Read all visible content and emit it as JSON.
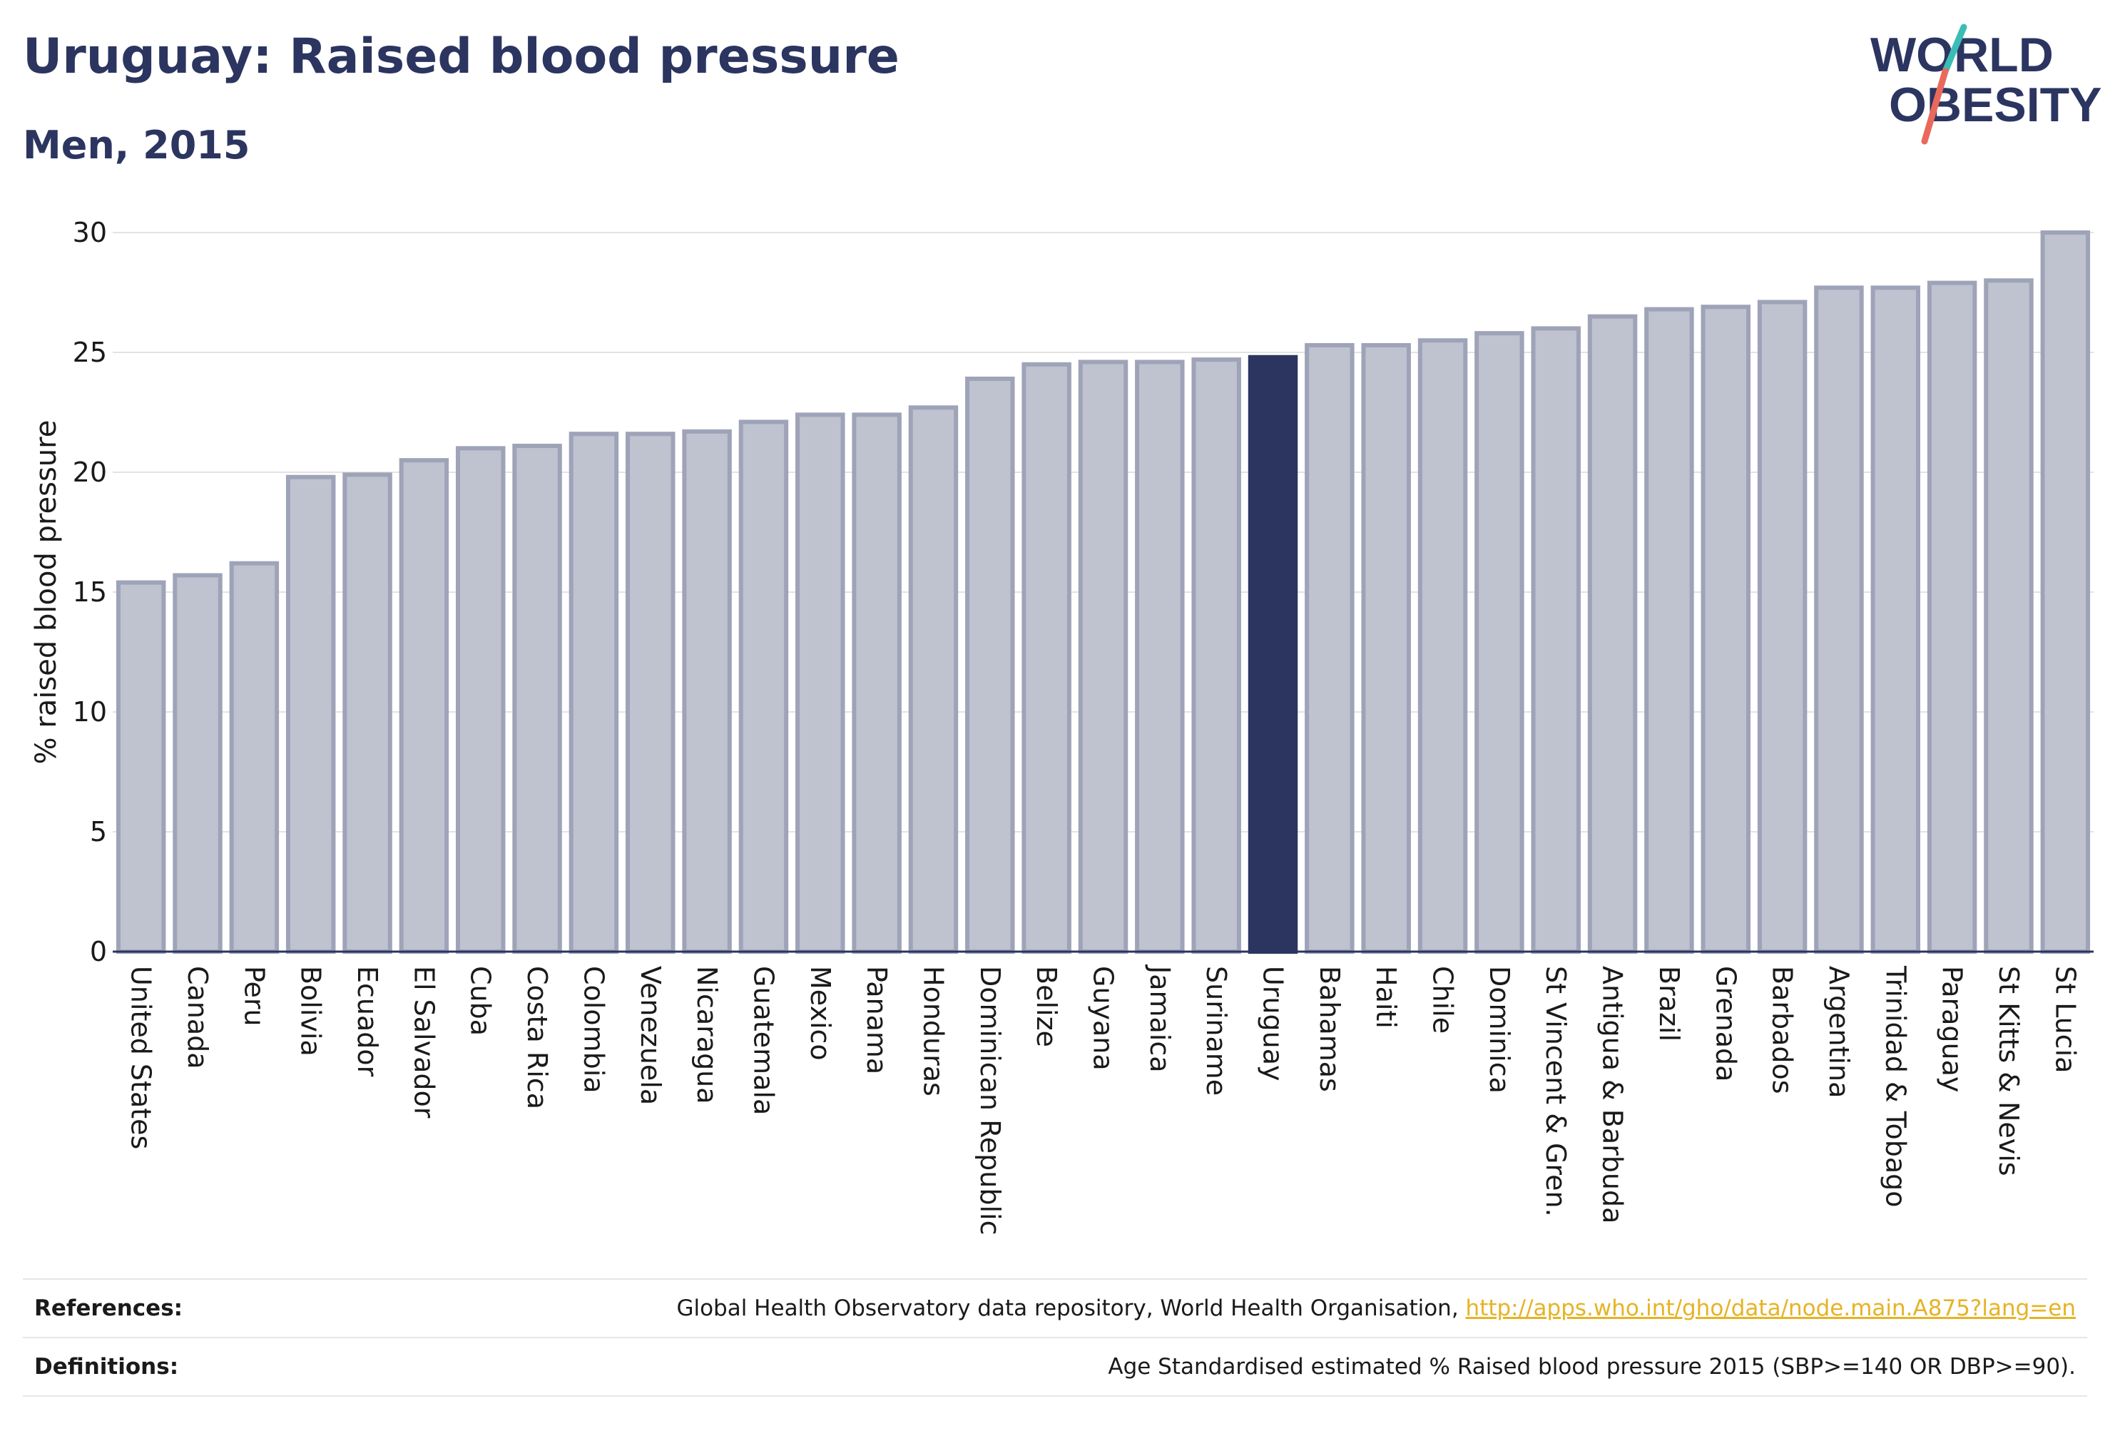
{
  "header": {
    "title": "Uruguay: Raised blood pressure",
    "subtitle": "Men, 2015",
    "logo_line1": "WORLD",
    "logo_line2": "OBESITY"
  },
  "colors": {
    "highlight": "#2b3560",
    "bar_fill": "#bfc2cf",
    "bar_stroke": "#9ea3b8",
    "title": "#2b3560",
    "link": "#e6b325",
    "logo_teal": "#3bbdb5",
    "logo_red": "#e9695b"
  },
  "chart_data": {
    "type": "bar",
    "title": "Uruguay: Raised blood pressure",
    "subtitle": "Men, 2015",
    "xlabel": "",
    "ylabel": "% raised blood pressure",
    "ylim": [
      0,
      30
    ],
    "yticks": [
      0,
      5,
      10,
      15,
      20,
      25,
      30
    ],
    "grid": true,
    "legend": "none",
    "highlight": "Uruguay",
    "categories": [
      "United States",
      "Canada",
      "Peru",
      "Bolivia",
      "Ecuador",
      "El Salvador",
      "Cuba",
      "Costa Rica",
      "Colombia",
      "Venezuela",
      "Nicaragua",
      "Guatemala",
      "Mexico",
      "Panama",
      "Honduras",
      "Dominican Republic",
      "Belize",
      "Guyana",
      "Jamaica",
      "Suriname",
      "Uruguay",
      "Bahamas",
      "Haiti",
      "Chile",
      "Dominica",
      "St Vincent & Gren.",
      "Antigua & Barbuda",
      "Brazil",
      "Grenada",
      "Barbados",
      "Argentina",
      "Trinidad & Tobago",
      "Paraguay",
      "St Kitts & Nevis",
      "St Lucia"
    ],
    "values": [
      15.4,
      15.7,
      16.2,
      19.8,
      19.9,
      20.5,
      21.0,
      21.1,
      21.6,
      21.6,
      21.7,
      22.1,
      22.4,
      22.4,
      22.7,
      23.9,
      24.5,
      24.6,
      24.6,
      24.7,
      24.8,
      25.3,
      25.3,
      25.5,
      25.8,
      26.0,
      26.5,
      26.8,
      26.9,
      27.1,
      27.7,
      27.7,
      27.9,
      28.0,
      30.0
    ]
  },
  "footer": {
    "references_label": "References:",
    "references_text": "Global Health Observatory data repository, World Health Organisation, ",
    "references_link": "http://apps.who.int/gho/data/node.main.A875?lang=en",
    "definitions_label": "Definitions:",
    "definitions_text": "Age Standardised estimated % Raised blood pressure 2015 (SBP>=140 OR DBP>=90)."
  }
}
